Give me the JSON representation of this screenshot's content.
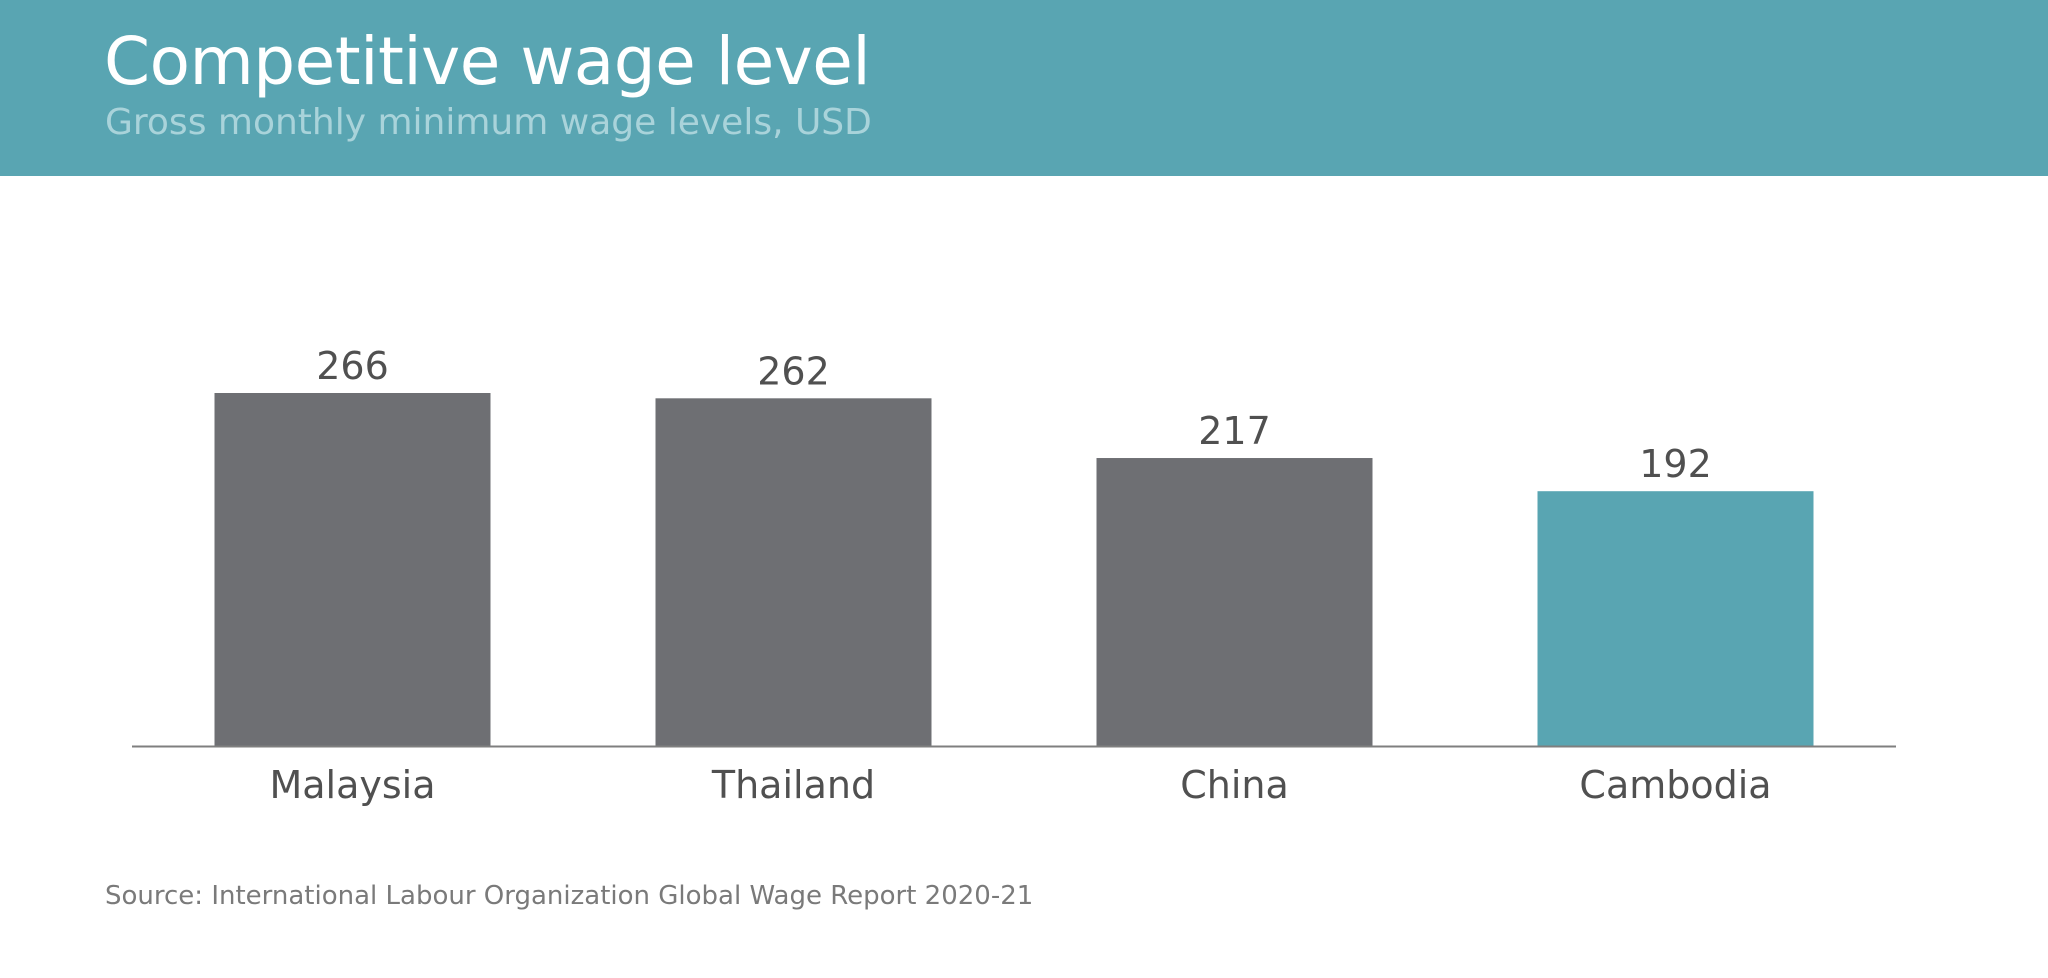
{
  "header": {
    "title": "Competitive wage level",
    "subtitle": "Gross monthly minimum wage levels, USD"
  },
  "source": "Source: International Labour Organization Global Wage Report 2020-21",
  "colors": {
    "header_bg": "#59a5b2",
    "bar_default": "#6e6f73",
    "bar_highlight": "#59a5b2",
    "text_dark": "#505050"
  },
  "chart_data": {
    "type": "bar",
    "categories": [
      "Malaysia",
      "Thailand",
      "China",
      "Cambodia"
    ],
    "values": [
      266,
      262,
      217,
      192
    ],
    "highlight": "Cambodia",
    "title": "Competitive wage level",
    "subtitle": "Gross monthly minimum wage levels, USD",
    "xlabel": "",
    "ylabel": "",
    "ylim": [
      0,
      320
    ],
    "grid": false,
    "data_labels": true,
    "legend": "none"
  }
}
